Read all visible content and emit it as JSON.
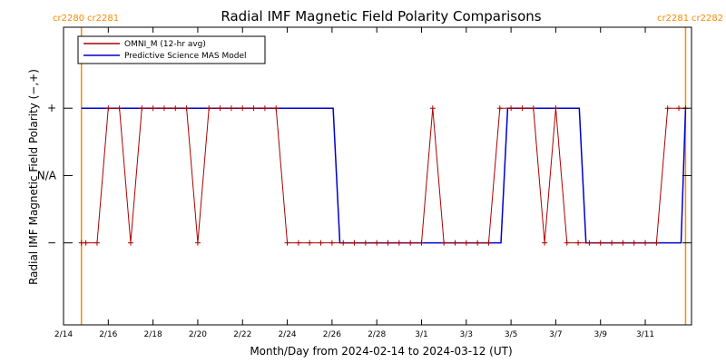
{
  "chart_data": {
    "type": "line",
    "title": "Radial IMF Magnetic Field Polarity Comparisons",
    "xlabel": "Month/Day from 2024-02-14 to 2024-03-12 (UT)",
    "ylabel": "Radial IMF Magnetic Field Polarity (−,+)",
    "x_domain_days": [
      0,
      27
    ],
    "ylim": [
      -2,
      2
    ],
    "x_ticks": [
      {
        "day": 0,
        "label": "2/14"
      },
      {
        "day": 2,
        "label": "2/16"
      },
      {
        "day": 4,
        "label": "2/18"
      },
      {
        "day": 6,
        "label": "2/20"
      },
      {
        "day": 8,
        "label": "2/22"
      },
      {
        "day": 10,
        "label": "2/24"
      },
      {
        "day": 12,
        "label": "2/26"
      },
      {
        "day": 14,
        "label": "2/28"
      },
      {
        "day": 16,
        "label": "3/1"
      },
      {
        "day": 18,
        "label": "3/3"
      },
      {
        "day": 20,
        "label": "3/5"
      },
      {
        "day": 22,
        "label": "3/7"
      },
      {
        "day": 24,
        "label": "3/9"
      },
      {
        "day": 26,
        "label": "3/11"
      }
    ],
    "y_ticks": [
      {
        "value": 1,
        "label": "+"
      },
      {
        "value": 0,
        "label": "N/A"
      },
      {
        "value": -1,
        "label": "−"
      }
    ],
    "carrington_markers": [
      {
        "day": 0.8,
        "left_label": "cr2280",
        "right_label": "cr2281"
      },
      {
        "day": 27.8,
        "left_label": "cr2281",
        "right_label": "cr2282"
      }
    ],
    "legend": "top-left",
    "series": [
      {
        "name": "OMNI_M (12-hr avg)",
        "color": "#aa0000",
        "markers": true,
        "x": [
          0.8,
          1.0,
          1.5,
          2.0,
          2.5,
          3.0,
          3.5,
          4.0,
          4.5,
          5.0,
          5.5,
          6.0,
          6.5,
          7.0,
          7.5,
          8.0,
          8.5,
          9.0,
          9.5,
          10.0,
          10.5,
          11.0,
          11.5,
          12.0,
          12.5,
          13.0,
          13.5,
          14.0,
          14.5,
          15.0,
          15.5,
          16.0,
          16.5,
          17.0,
          17.5,
          18.0,
          18.5,
          19.0,
          19.5,
          20.0,
          20.5,
          21.0,
          21.5,
          22.0,
          22.5,
          23.0,
          23.5,
          24.0,
          24.5,
          25.0,
          25.5,
          26.0,
          26.5,
          27.0,
          27.5,
          27.8
        ],
        "y": [
          -1,
          -1,
          -1,
          1,
          1,
          -1,
          1,
          1,
          1,
          1,
          1,
          -1,
          1,
          1,
          1,
          1,
          1,
          1,
          1,
          -1,
          -1,
          -1,
          -1,
          -1,
          -1,
          -1,
          -1,
          -1,
          -1,
          -1,
          -1,
          -1,
          1,
          -1,
          -1,
          -1,
          -1,
          -1,
          1,
          1,
          1,
          1,
          -1,
          1,
          -1,
          -1,
          -1,
          -1,
          -1,
          -1,
          -1,
          -1,
          -1,
          1,
          1,
          1
        ]
      },
      {
        "name": "Predictive Science MAS Model",
        "color": "#0000cc",
        "markers": false,
        "x": [
          0.8,
          12.05,
          12.35,
          27.6,
          27.8
        ],
        "y": [
          1,
          1,
          -1,
          -1,
          1
        ],
        "segments": [
          {
            "x": [
              0.8,
              12.05,
              12.35,
              19.55,
              19.85,
              23.05,
              23.35,
              27.6,
              27.8
            ],
            "y": [
              1,
              1,
              -1,
              -1,
              1,
              1,
              -1,
              -1,
              1
            ]
          }
        ]
      }
    ]
  }
}
